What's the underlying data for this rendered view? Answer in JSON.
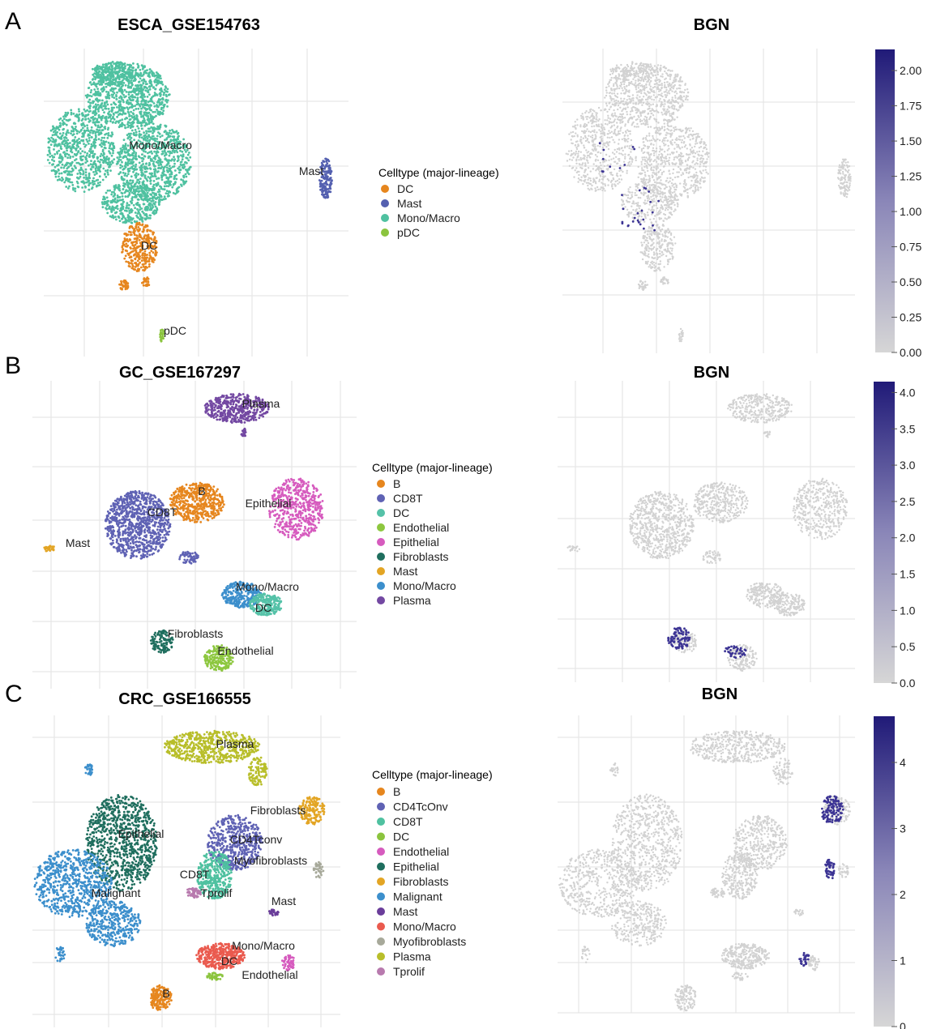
{
  "panels": [
    {
      "letter": "A",
      "umap_title": "ESCA_GSE154763",
      "feature_title": "BGN",
      "legend_title": "Celltype (major-lineage)",
      "celltypes": [
        {
          "name": "DC",
          "color": "#E6861E"
        },
        {
          "name": "Mast",
          "color": "#5460B0"
        },
        {
          "name": "Mono/Macro",
          "color": "#4FC1A0"
        },
        {
          "name": "pDC",
          "color": "#8BC43E"
        }
      ],
      "cluster_labels": [
        "Mono/Macro",
        "Mast",
        "DC",
        "pDC"
      ],
      "colorbar": {
        "ticks": [
          "0.00",
          "0.25",
          "0.50",
          "0.75",
          "1.00",
          "1.25",
          "1.50",
          "1.75",
          "2.00"
        ],
        "min": 0,
        "max": 2.15
      }
    },
    {
      "letter": "B",
      "umap_title": "GC_GSE167297",
      "feature_title": "BGN",
      "legend_title": "Celltype (major-lineage)",
      "celltypes": [
        {
          "name": "B",
          "color": "#E6861E"
        },
        {
          "name": "CD8T",
          "color": "#5F62B4"
        },
        {
          "name": "DC",
          "color": "#55C2A8"
        },
        {
          "name": "Endothelial",
          "color": "#8DC73F"
        },
        {
          "name": "Epithelial",
          "color": "#D65BBE"
        },
        {
          "name": "Fibroblasts",
          "color": "#1F6E5E"
        },
        {
          "name": "Mast",
          "color": "#E3A524"
        },
        {
          "name": "Mono/Macro",
          "color": "#3C8FCC"
        },
        {
          "name": "Plasma",
          "color": "#7348A2"
        }
      ],
      "cluster_labels": [
        "Plasma",
        "B",
        "CD8T",
        "Epithelial",
        "Mast",
        "Mono/Macro",
        "DC",
        "Fibroblasts",
        "Endothelial"
      ],
      "colorbar": {
        "ticks": [
          "0.0",
          "0.5",
          "1.0",
          "1.5",
          "2.0",
          "2.5",
          "3.0",
          "3.5",
          "4.0"
        ],
        "min": 0,
        "max": 4.15
      }
    },
    {
      "letter": "C",
      "umap_title": "CRC_GSE166555",
      "feature_title": "BGN",
      "legend_title": "Celltype (major-lineage)",
      "celltypes": [
        {
          "name": "B",
          "color": "#E6861E"
        },
        {
          "name": "CD4TcOnv",
          "color": "#5F62B4"
        },
        {
          "name": "CD8T",
          "color": "#4FC1A0"
        },
        {
          "name": "DC",
          "color": "#8BC43E"
        },
        {
          "name": "Endothelial",
          "color": "#D65BBE"
        },
        {
          "name": "Epithelial",
          "color": "#1F6E5E"
        },
        {
          "name": "Fibroblasts",
          "color": "#E3A524"
        },
        {
          "name": "Malignant",
          "color": "#3C8FCC"
        },
        {
          "name": "Mast",
          "color": "#6A3D9A"
        },
        {
          "name": "Mono/Macro",
          "color": "#EA5A4E"
        },
        {
          "name": "Myofibroblasts",
          "color": "#A7A99A"
        },
        {
          "name": "Plasma",
          "color": "#B8BE2A"
        },
        {
          "name": "Tprolif",
          "color": "#B87AAE"
        }
      ],
      "cluster_labels": [
        "Plasma",
        "Fibroblasts",
        "Epithelial",
        "CD4Tconv",
        "Myofibroblasts",
        "CD8T",
        "Tprolif",
        "Malignant",
        "Mast",
        "Mono/Macro",
        "DC",
        "Endothelial",
        "B"
      ],
      "colorbar": {
        "ticks": [
          "0",
          "1",
          "2",
          "3",
          "4"
        ],
        "min": 0,
        "max": 4.7
      }
    }
  ],
  "colors": {
    "low": "#d6d6d6",
    "high": "#201a78",
    "grid": "#e6e6e6",
    "point_grey": "#d2d2d2"
  },
  "chart_data": [
    {
      "type": "scatter",
      "title": "ESCA_GSE154763",
      "subtype": "UMAP",
      "legend": "Celltype (major-lineage)",
      "categories": [
        "DC",
        "Mast",
        "Mono/Macro",
        "pDC"
      ]
    },
    {
      "type": "scatter",
      "title": "BGN",
      "dataset": "ESCA_GSE154763",
      "subtype": "feature plot",
      "colorbar_range": [
        0,
        2.15
      ]
    },
    {
      "type": "scatter",
      "title": "GC_GSE167297",
      "subtype": "UMAP",
      "legend": "Celltype (major-lineage)",
      "categories": [
        "B",
        "CD8T",
        "DC",
        "Endothelial",
        "Epithelial",
        "Fibroblasts",
        "Mast",
        "Mono/Macro",
        "Plasma"
      ]
    },
    {
      "type": "scatter",
      "title": "BGN",
      "dataset": "GC_GSE167297",
      "subtype": "feature plot",
      "colorbar_range": [
        0,
        4.15
      ]
    },
    {
      "type": "scatter",
      "title": "CRC_GSE166555",
      "subtype": "UMAP",
      "legend": "Celltype (major-lineage)",
      "categories": [
        "B",
        "CD4TcOnv",
        "CD8T",
        "DC",
        "Endothelial",
        "Epithelial",
        "Fibroblasts",
        "Malignant",
        "Mast",
        "Mono/Macro",
        "Myofibroblasts",
        "Plasma",
        "Tprolif"
      ]
    },
    {
      "type": "scatter",
      "title": "BGN",
      "dataset": "CRC_GSE166555",
      "subtype": "feature plot",
      "colorbar_range": [
        0,
        4.7
      ]
    }
  ]
}
